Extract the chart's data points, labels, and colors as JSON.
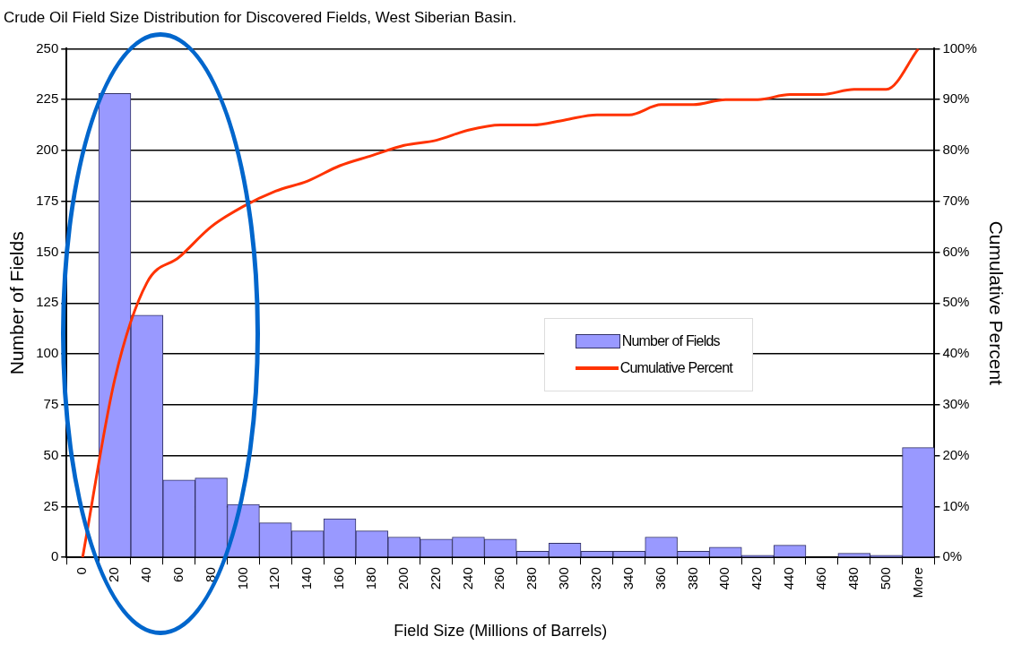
{
  "chart_data": {
    "type": "bar",
    "title": "Crude Oil Field Size Distribution for Discovered Fields, West Siberian Basin.",
    "xlabel": "Field Size (Millions of Barrels)",
    "ylabel": "Number of Fields",
    "y2label": "Cumulative Percent",
    "categories": [
      "0",
      "20",
      "40",
      "60",
      "80",
      "100",
      "120",
      "140",
      "160",
      "180",
      "200",
      "220",
      "240",
      "260",
      "280",
      "300",
      "320",
      "340",
      "360",
      "380",
      "400",
      "420",
      "440",
      "460",
      "480",
      "500",
      "More"
    ],
    "series": [
      {
        "name": "Number of Fields",
        "color": "#9999ff",
        "values": [
          0,
          228,
          119,
          38,
          39,
          26,
          17,
          13,
          19,
          13,
          10,
          9,
          10,
          9,
          3,
          7,
          3,
          3,
          10,
          3,
          5,
          1,
          6,
          0,
          2,
          1,
          54
        ]
      },
      {
        "name": "Cumulative Percent",
        "type": "line",
        "axis": "y2",
        "color": "#ff3300",
        "values": [
          0,
          35,
          54,
          59,
          65,
          69,
          72,
          74,
          77,
          79,
          81,
          82,
          84,
          85,
          85,
          86,
          87,
          87,
          89,
          89,
          90,
          90,
          91,
          91,
          92,
          92,
          100
        ]
      }
    ],
    "ylim": [
      0,
      250
    ],
    "yticks": [
      0,
      25,
      50,
      75,
      100,
      125,
      150,
      175,
      200,
      225,
      250
    ],
    "y2lim": [
      0,
      100
    ],
    "y2ticks": [
      {
        "value": 0,
        "label": "0%"
      },
      {
        "value": 10,
        "label": "10%"
      },
      {
        "value": 20,
        "label": "20%"
      },
      {
        "value": 30,
        "label": "30%"
      },
      {
        "value": 40,
        "label": "40%"
      },
      {
        "value": 50,
        "label": "50%"
      },
      {
        "value": 60,
        "label": "60%"
      },
      {
        "value": 70,
        "label": "70%"
      },
      {
        "value": 80,
        "label": "80%"
      },
      {
        "value": 90,
        "label": "90%"
      },
      {
        "value": 100,
        "label": "100%"
      }
    ],
    "grid": "y",
    "legend": "center right",
    "marker": "none",
    "line_style": "solid"
  }
}
